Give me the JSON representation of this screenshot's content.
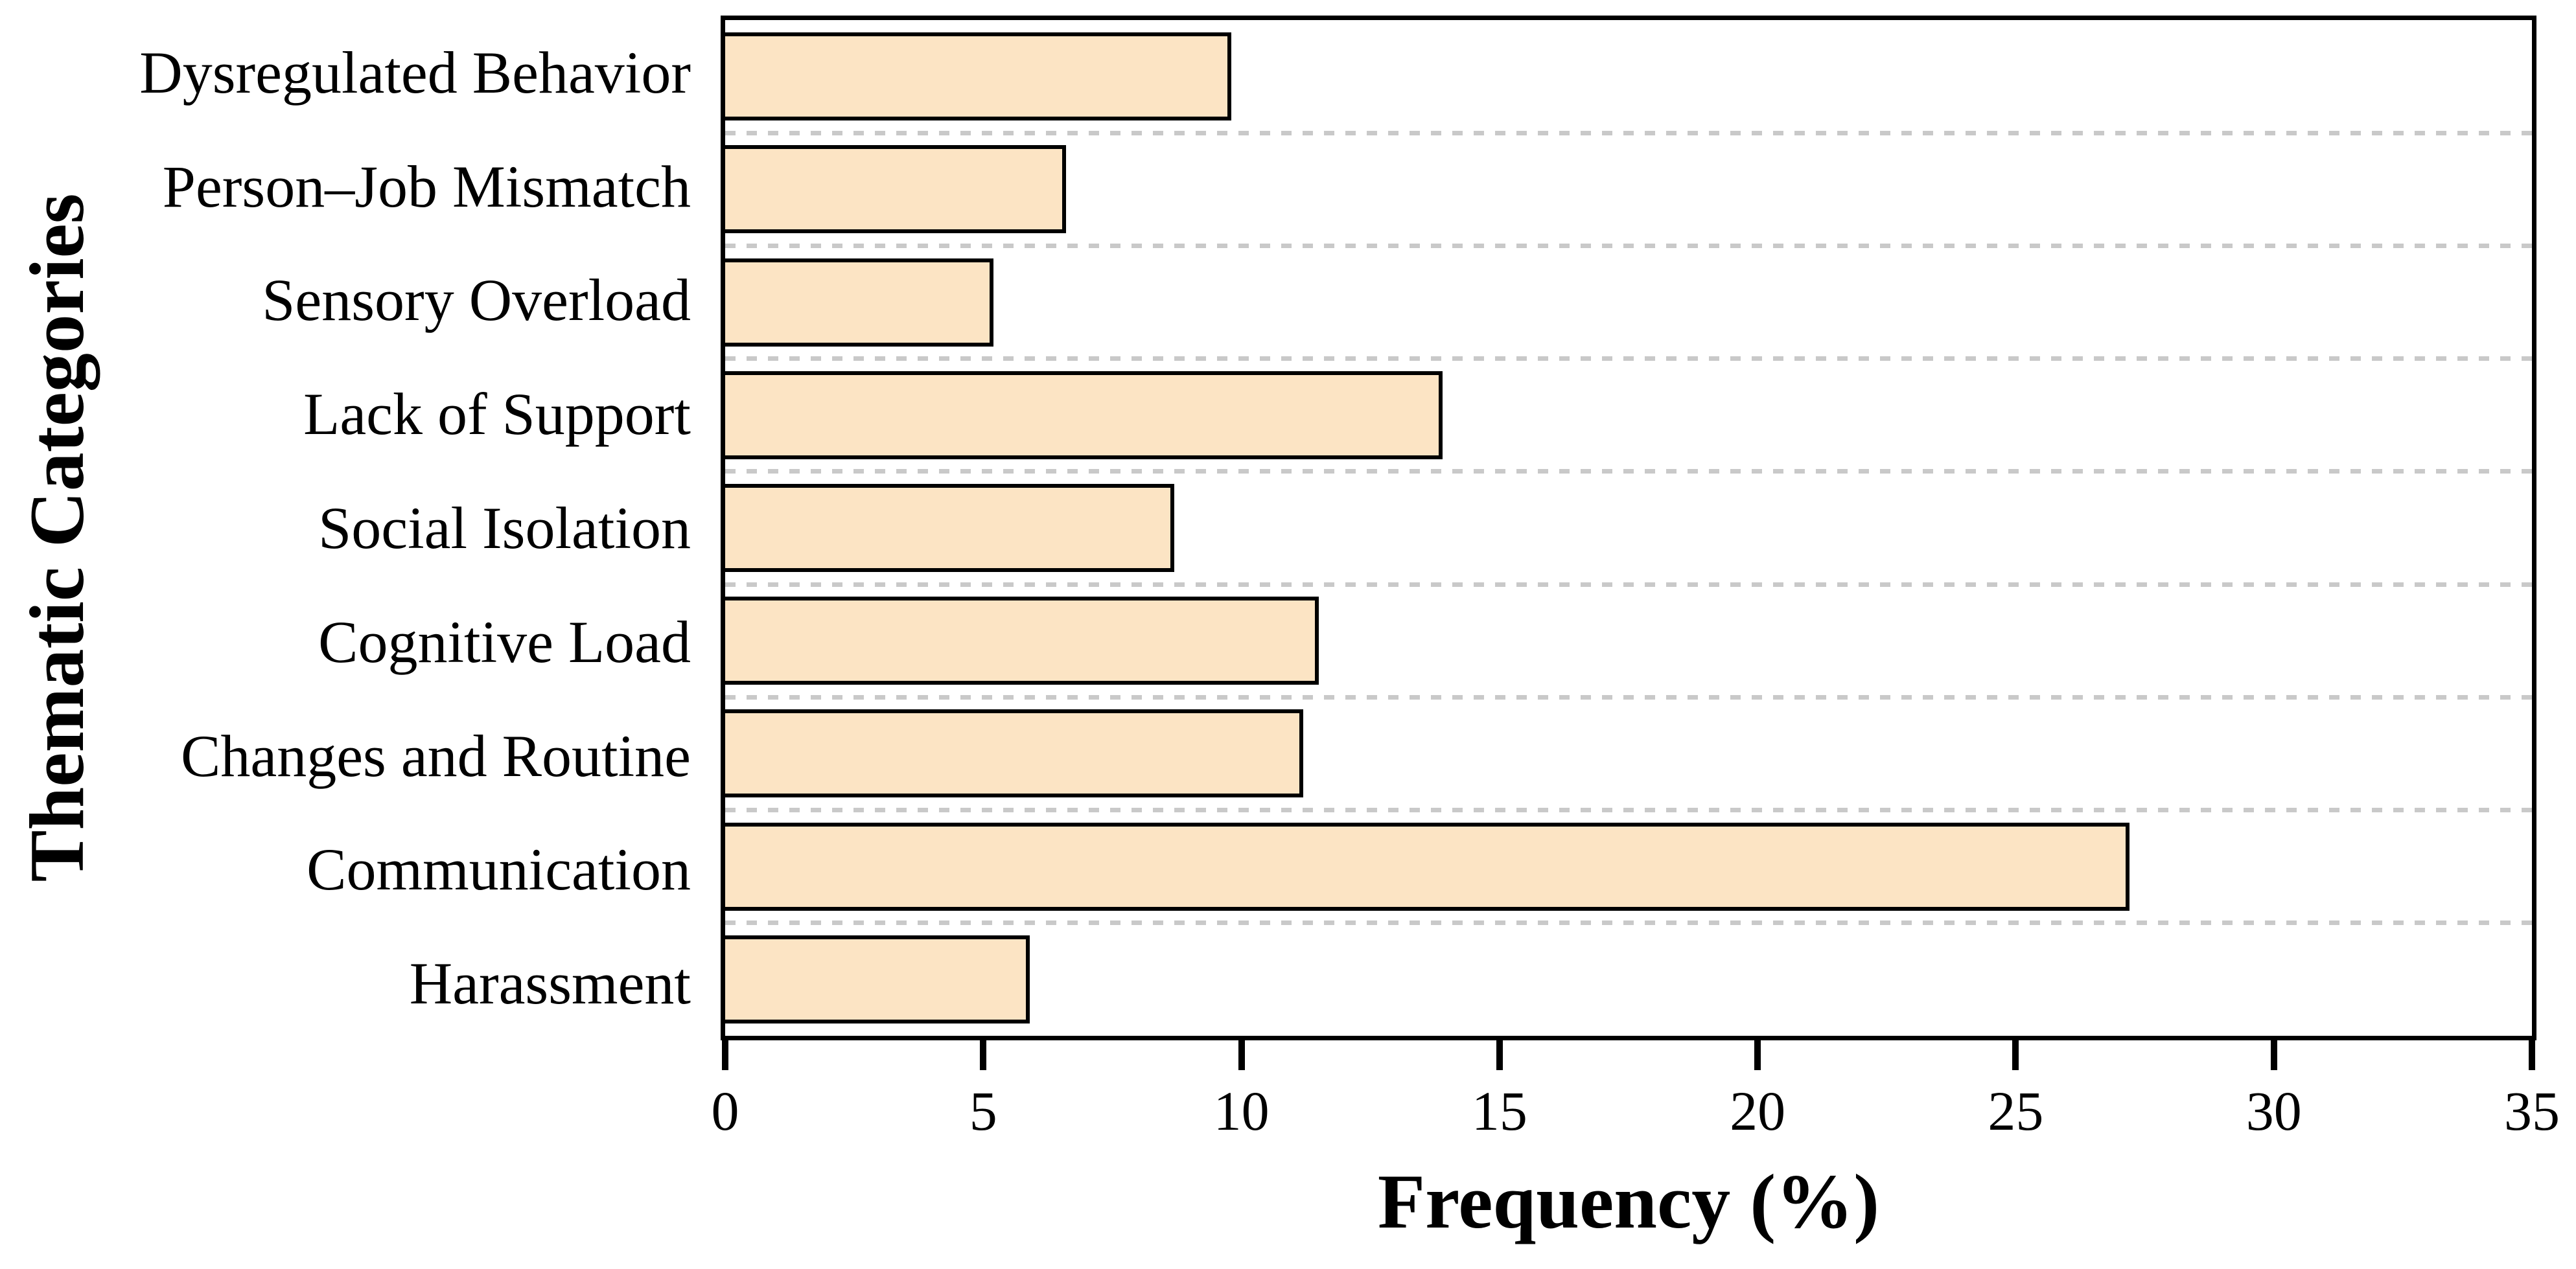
{
  "chart_data": {
    "type": "bar",
    "orientation": "horizontal",
    "title": "",
    "xlabel": "Frequency (%)",
    "ylabel": "Thematic Categories",
    "categories": [
      "Dysregulated Behavior",
      "Person–Job Mismatch",
      "Sensory Overload",
      "Lack of Support",
      "Social Isolation",
      "Cognitive Load",
      "Changes and Routine",
      "Communication",
      "Harassment"
    ],
    "values": [
      9.8,
      6.6,
      5.2,
      13.9,
      8.7,
      11.5,
      11.2,
      27.2,
      5.9
    ],
    "xlim": [
      0,
      35
    ],
    "xticks": [
      0,
      5,
      10,
      15,
      20,
      25,
      30,
      35
    ],
    "grid": "horizontal-dashed",
    "legend": "none",
    "colors": {
      "bar_fill": "#fce4c4",
      "bar_border": "#000000",
      "gridline": "#c9c9c9",
      "frame": "#000000",
      "background": "#ffffff"
    }
  }
}
